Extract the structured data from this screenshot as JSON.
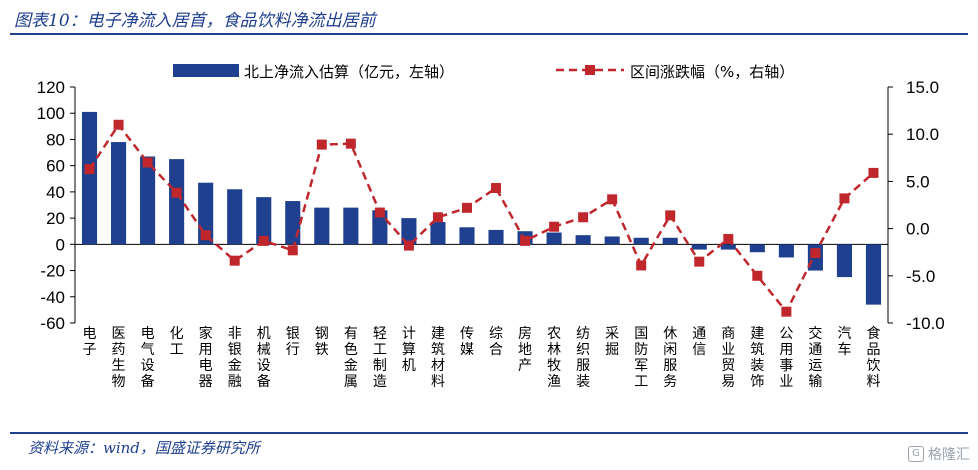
{
  "header": {
    "title": "图表10：电子净流入居首，食品饮料净流出居前"
  },
  "footer": {
    "source": "资料来源：wind，国盛证券研究所",
    "watermark": "格隆汇"
  },
  "colors": {
    "bar": "#1f3f8f",
    "line": "#c0272d",
    "rule": "#1f3f8f"
  },
  "chart_data": {
    "type": "bar",
    "categories": [
      "电子",
      "医药生物",
      "电气设备",
      "化工",
      "家用电器",
      "非银金融",
      "机械设备",
      "银行",
      "钢铁",
      "有色金属",
      "轻工制造",
      "计算机",
      "建筑材料",
      "传媒",
      "综合",
      "房地产",
      "农林牧渔",
      "纺织服装",
      "采掘",
      "国防军工",
      "休闲服务",
      "通信",
      "商业贸易",
      "建筑装饰",
      "公用事业",
      "交通运输",
      "汽车",
      "食品饮料"
    ],
    "series": [
      {
        "name": "北上净流入估算（亿元，左轴）",
        "type": "bar",
        "axis": "left",
        "values": [
          101,
          78,
          67,
          65,
          47,
          42,
          36,
          33,
          28,
          28,
          26,
          20,
          17,
          13,
          11,
          10,
          9,
          7,
          6,
          5,
          5,
          -4,
          -4,
          -6,
          -10,
          -20,
          -25,
          -46
        ]
      },
      {
        "name": "区间涨跌幅（%，右轴）",
        "type": "line",
        "axis": "right",
        "values": [
          6.3,
          11.0,
          7.0,
          3.8,
          -0.7,
          -3.4,
          -1.3,
          -2.3,
          8.9,
          9.0,
          1.7,
          -1.8,
          1.2,
          2.2,
          4.3,
          -1.3,
          0.2,
          1.2,
          3.1,
          -3.9,
          1.4,
          -3.5,
          -1.1,
          -5.0,
          -8.8,
          -2.6,
          3.2,
          5.9
        ]
      }
    ],
    "ylim_left": [
      -60,
      120
    ],
    "yticks_left": [
      "120",
      "100",
      "80",
      "60",
      "40",
      "20",
      "0",
      "-20",
      "-40",
      "-60"
    ],
    "ylim_right": [
      -10,
      15
    ],
    "yticks_right": [
      "15.0",
      "10.0",
      "5.0",
      "0.0",
      "-5.0",
      "-10.0"
    ],
    "legend_position": "top"
  }
}
